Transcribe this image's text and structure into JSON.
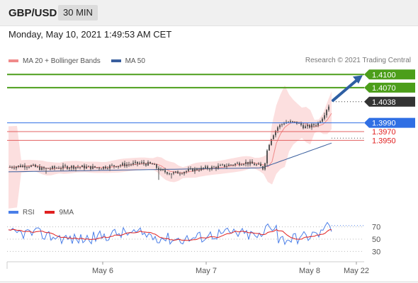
{
  "header": {
    "symbol": "GBP/USD",
    "timeframe": "30 MIN"
  },
  "datetime": "Monday, May 10, 2021 1:49:53 AM CET",
  "credit": "Research © 2021 Trading Central",
  "legend": [
    {
      "label": "MA 20 + Bollinger Bands",
      "color": "#f08a8a"
    },
    {
      "label": "MA 50",
      "color": "#3a5f9e"
    }
  ],
  "rsi_legend": [
    {
      "label": "RSI",
      "color": "#4a7ee8"
    },
    {
      "label": "9MA",
      "color": "#e02020"
    }
  ],
  "colors": {
    "candle": "#555555",
    "resistance": "#4c9e1a",
    "pivot": "#2f6fe4",
    "support": "#e36060",
    "support_text": "#e02020",
    "current": "#333333",
    "arrow": "#2e5fa3",
    "bb_fill": "#fbd4d4"
  },
  "chart_data": [
    {
      "type": "candlestick",
      "instrument": "GBP/USD",
      "interval": "30 MIN",
      "x_ticks": [
        "May 6",
        "May 7",
        "May 8",
        "May 22"
      ],
      "y_range": [
        1.3825,
        1.4115
      ],
      "levels": [
        {
          "label": "1.4100",
          "value": 1.41,
          "kind": "resistance"
        },
        {
          "label": "1.4070",
          "value": 1.407,
          "kind": "resistance"
        },
        {
          "label": "1.4038",
          "value": 1.4038,
          "kind": "current"
        },
        {
          "label": "1.3990",
          "value": 1.399,
          "kind": "pivot"
        },
        {
          "label": "1.3970",
          "value": 1.397,
          "kind": "support"
        },
        {
          "label": "1.3950",
          "value": 1.395,
          "kind": "support"
        }
      ],
      "targets": [
        1.41
      ],
      "series": [
        {
          "name": "MA 20 + Bollinger Bands"
        },
        {
          "name": "MA 50"
        }
      ]
    },
    {
      "type": "line",
      "y_ticks": [
        70,
        50,
        30
      ],
      "y_range": [
        20,
        80
      ],
      "series": [
        {
          "name": "RSI"
        },
        {
          "name": "9MA"
        }
      ]
    }
  ]
}
